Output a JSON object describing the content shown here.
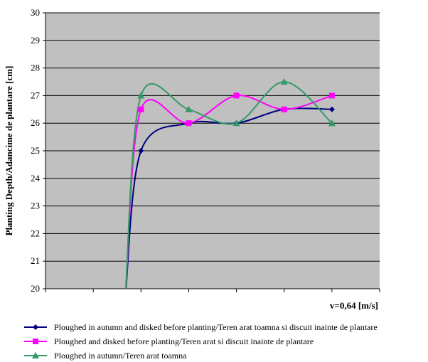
{
  "chart_data": {
    "type": "line",
    "title": "",
    "ylabel": "Planting Depth/Adancime de plantare [cm]",
    "xlabel": "v=0,64 [m/s]",
    "ylim": [
      20,
      30
    ],
    "yticks": [
      20,
      21,
      22,
      23,
      24,
      25,
      26,
      27,
      28,
      29,
      30
    ],
    "x_tick_labels": [],
    "grid": true,
    "background": "#c0c0c0",
    "legend_position": "bottom",
    "series": [
      {
        "name": "Ploughed in autumn and disked before planting/Teren arat toamna si discuit inainte de plantare",
        "color": "#000080",
        "marker": "diamond",
        "values": [
          null,
          25,
          26,
          26,
          26.5,
          26.5
        ]
      },
      {
        "name": "Ploughed and disked before planting/Teren arat si discuit inainte de plantare",
        "color": "#ff00ff",
        "marker": "square",
        "values": [
          null,
          26.5,
          26,
          27,
          26.5,
          27
        ]
      },
      {
        "name": "Ploughed in autumn/Teren arat toamna",
        "color": "#339966",
        "marker": "triangle",
        "values": [
          null,
          27,
          26.5,
          26,
          27.5,
          26
        ]
      }
    ]
  }
}
